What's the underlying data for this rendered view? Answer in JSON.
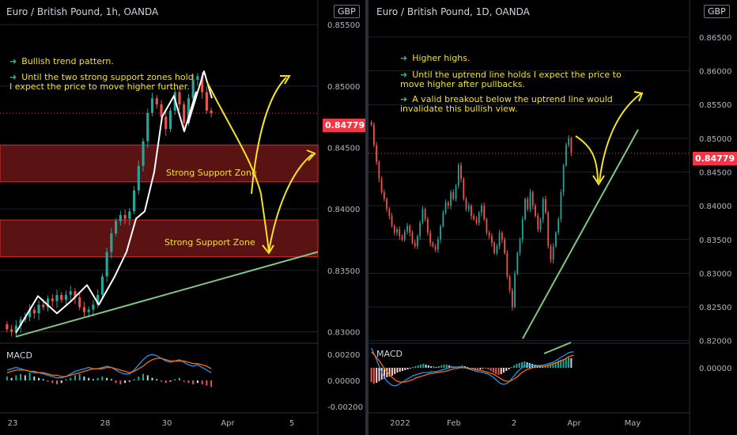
{
  "chart_data": [
    {
      "type": "candlestick",
      "title": "Euro / British Pound, 1h, OANDA",
      "currency": "GBP",
      "ylim": [
        0.829,
        0.857
      ],
      "y_ticks": [
        "0.85500",
        "0.85000",
        "0.84500",
        "0.84000",
        "0.83500",
        "0.83000"
      ],
      "y_tick_values": [
        0.855,
        0.85,
        0.845,
        0.84,
        0.835,
        0.83
      ],
      "x_ticks": [
        "23",
        "28",
        "30",
        "Apr",
        "5"
      ],
      "last_price": "0.84779",
      "last_price_value": 0.84779,
      "notes": [
        "Bullish trend pattern.",
        "Until the two strong support zones hold\nI expect the price to move higher further."
      ],
      "zones": [
        {
          "label": "Strong Support Zone",
          "from": 0.8422,
          "to": 0.8452
        },
        {
          "label": "Strong Support Zone",
          "from": 0.8361,
          "to": 0.8391
        }
      ],
      "trendline": {
        "from": 0.8296,
        "to": 0.8365
      },
      "path_points": [
        0.8299,
        0.8329,
        0.8315,
        0.8325,
        0.8338,
        0.8322,
        0.8345,
        0.8365,
        0.8392,
        0.8398,
        0.843,
        0.8475,
        0.8492,
        0.8463,
        0.8495,
        0.847,
        0.8512,
        0.849
      ],
      "close_series": [
        0.8302,
        0.83,
        0.8305,
        0.831,
        0.8312,
        0.8318,
        0.8315,
        0.8322,
        0.832,
        0.8327,
        0.8325,
        0.833,
        0.8326,
        0.833,
        0.8333,
        0.8328,
        0.832,
        0.8316,
        0.8318,
        0.8322,
        0.833,
        0.8345,
        0.8365,
        0.838,
        0.839,
        0.8395,
        0.8392,
        0.8398,
        0.8415,
        0.8435,
        0.8455,
        0.8478,
        0.849,
        0.8485,
        0.8475,
        0.8465,
        0.848,
        0.8495,
        0.8485,
        0.847,
        0.849,
        0.8505,
        0.8508,
        0.8495,
        0.848,
        0.8478
      ],
      "macd": {
        "label": "MACD",
        "y_ticks": [
          "0.00200",
          "0.00000",
          "-0.00200"
        ],
        "y_tick_values": [
          0.002,
          0.0,
          -0.002
        ],
        "histogram": [
          0.0003,
          0.0002,
          0.0004,
          0.0005,
          0.0004,
          0.0006,
          0.0003,
          0.0002,
          0.0001,
          -0.0001,
          -0.0002,
          -0.0003,
          -0.0002,
          0.0001,
          0.0002,
          0.0004,
          0.0005,
          0.0003,
          0.0002,
          0.0001,
          0.0002,
          0.0003,
          0.0002,
          0.0001,
          -0.0002,
          -0.0003,
          -0.0002,
          -0.0001,
          0.0001,
          0.0003,
          0.0005,
          0.0004,
          0.0002,
          0.0001,
          -0.0001,
          -0.0002,
          -0.0001,
          0.0001,
          0.0002,
          -0.0001,
          -0.0002,
          -0.0003,
          -0.0002,
          -0.0003,
          -0.0004,
          -0.0005
        ],
        "macd_line": [
          0.0008,
          0.0009,
          0.001,
          0.0009,
          0.0008,
          0.0007,
          0.0006,
          0.0006,
          0.0005,
          0.0004,
          0.0003,
          0.0002,
          0.0002,
          0.0003,
          0.0005,
          0.0007,
          0.0008,
          0.0009,
          0.001,
          0.0009,
          0.0009,
          0.001,
          0.0011,
          0.001,
          0.0008,
          0.0006,
          0.0005,
          0.0005,
          0.0008,
          0.0012,
          0.0016,
          0.0019,
          0.002,
          0.0019,
          0.0017,
          0.0015,
          0.0014,
          0.0015,
          0.0016,
          0.0014,
          0.0012,
          0.0011,
          0.0012,
          0.001,
          0.0008,
          0.0006
        ],
        "signal_line": [
          0.0006,
          0.0007,
          0.0008,
          0.0008,
          0.0008,
          0.0007,
          0.0007,
          0.0006,
          0.0006,
          0.0005,
          0.0004,
          0.0004,
          0.0003,
          0.0003,
          0.0004,
          0.0005,
          0.0006,
          0.0007,
          0.0008,
          0.0009,
          0.0009,
          0.0009,
          0.001,
          0.001,
          0.0009,
          0.0008,
          0.0007,
          0.0006,
          0.0007,
          0.0009,
          0.0011,
          0.0014,
          0.0016,
          0.0017,
          0.0017,
          0.0016,
          0.0015,
          0.0015,
          0.0015,
          0.0015,
          0.0014,
          0.0013,
          0.0013,
          0.0012,
          0.0011,
          0.0009
        ]
      }
    },
    {
      "type": "candlestick",
      "title": "Euro / British Pound, 1D, OANDA",
      "currency": "GBP",
      "ylim": [
        0.8195,
        0.8705
      ],
      "y_ticks": [
        "0.86500",
        "0.86000",
        "0.85500",
        "0.85000",
        "0.84500",
        "0.84000",
        "0.83500",
        "0.83000",
        "0.82500",
        "0.82000"
      ],
      "y_tick_values": [
        0.865,
        0.86,
        0.855,
        0.85,
        0.845,
        0.84,
        0.835,
        0.83,
        0.825,
        0.82
      ],
      "x_ticks": [
        "2022",
        "Feb",
        "2",
        "Apr",
        "May"
      ],
      "last_price": "0.84779",
      "last_price_value": 0.84779,
      "notes": [
        "Higher highs.",
        "Until the uptrend line holds I expect the price to\nmove higher after pullbacks.",
        "A valid breakout below the uptrend line would\ninvalidate this bullish view."
      ],
      "trendline": {
        "from": 0.8203,
        "to": 0.8513
      },
      "close_series": [
        0.852,
        0.849,
        0.8465,
        0.844,
        0.842,
        0.841,
        0.8395,
        0.8385,
        0.837,
        0.836,
        0.8365,
        0.8355,
        0.835,
        0.8362,
        0.837,
        0.836,
        0.8345,
        0.834,
        0.8355,
        0.8375,
        0.8395,
        0.838,
        0.836,
        0.8345,
        0.834,
        0.8335,
        0.835,
        0.837,
        0.839,
        0.8405,
        0.84,
        0.842,
        0.841,
        0.843,
        0.846,
        0.844,
        0.841,
        0.8395,
        0.84,
        0.8385,
        0.838,
        0.8375,
        0.839,
        0.84,
        0.838,
        0.836,
        0.8355,
        0.8345,
        0.833,
        0.834,
        0.836,
        0.835,
        0.833,
        0.8295,
        0.8275,
        0.825,
        0.83,
        0.833,
        0.835,
        0.838,
        0.841,
        0.8395,
        0.842,
        0.84,
        0.8385,
        0.8365,
        0.838,
        0.841,
        0.839,
        0.834,
        0.832,
        0.834,
        0.836,
        0.838,
        0.842,
        0.846,
        0.849,
        0.85,
        0.8478
      ],
      "macd": {
        "label": "MACD",
        "y_ticks": [
          "0.00000"
        ],
        "y_tick_values": [
          0.0
        ],
        "histogram": [
          -0.0018,
          -0.002,
          -0.0019,
          -0.0017,
          -0.0015,
          -0.0014,
          -0.0012,
          -0.0011,
          -0.001,
          -0.0008,
          -0.0006,
          -0.0005,
          -0.0004,
          -0.0003,
          -0.0002,
          -0.0001,
          0.0001,
          0.0002,
          0.0003,
          0.0004,
          0.0005,
          0.0004,
          0.0003,
          0.0002,
          0.0002,
          0.0001,
          0.0002,
          0.0003,
          0.0004,
          0.0004,
          0.0003,
          0.0002,
          0.0001,
          0.0001,
          0.0002,
          0.0003,
          0.0002,
          0.0001,
          -0.0001,
          -0.0002,
          -0.0003,
          -0.0003,
          -0.0002,
          -0.0001,
          -0.0001,
          -0.0002,
          -0.0004,
          -0.0006,
          -0.0008,
          -0.0009,
          -0.0008,
          -0.0006,
          -0.0004,
          -0.0002,
          0.0001,
          0.0003,
          0.0005,
          0.0006,
          0.0007,
          0.0008,
          0.0007,
          0.0006,
          0.0005,
          0.0004,
          0.0003,
          0.0002,
          0.0001,
          0.0002,
          0.0003,
          0.0004,
          0.0005,
          0.0007,
          0.0009,
          0.001,
          0.0011,
          0.0012,
          0.0013,
          0.0012
        ],
        "macd_line": [
          0.0025,
          0.0018,
          0.001,
          0.0002,
          -0.0006,
          -0.0012,
          -0.0017,
          -0.002,
          -0.0022,
          -0.0023,
          -0.0022,
          -0.002,
          -0.0018,
          -0.0016,
          -0.0014,
          -0.0012,
          -0.001,
          -0.0009,
          -0.0008,
          -0.0007,
          -0.0006,
          -0.0006,
          -0.0006,
          -0.0005,
          -0.0005,
          -0.0005,
          -0.0004,
          -0.0003,
          -0.0002,
          -0.0001,
          0.0,
          0.0001,
          0.0001,
          0.0001,
          0.0001,
          0.0001,
          0.0,
          -0.0001,
          -0.0002,
          -0.0003,
          -0.0004,
          -0.0005,
          -0.0005,
          -0.0006,
          -0.0007,
          -0.0008,
          -0.001,
          -0.0012,
          -0.0015,
          -0.0018,
          -0.002,
          -0.0021,
          -0.002,
          -0.0018,
          -0.0014,
          -0.001,
          -0.0006,
          -0.0003,
          0.0,
          0.0002,
          0.0003,
          0.0003,
          0.0003,
          0.0003,
          0.0003,
          0.0003,
          0.0003,
          0.0004,
          0.0005,
          0.0006,
          0.0007,
          0.0009,
          0.0011,
          0.0013,
          0.0015,
          0.0017,
          0.0019,
          0.002,
          0.002
        ],
        "signal_line": [
          0.002,
          0.0017,
          0.0013,
          0.0009,
          0.0004,
          -0.0001,
          -0.0005,
          -0.0009,
          -0.0012,
          -0.0015,
          -0.0017,
          -0.0018,
          -0.0018,
          -0.0018,
          -0.0017,
          -0.0016,
          -0.0015,
          -0.0013,
          -0.0012,
          -0.0011,
          -0.001,
          -0.0009,
          -0.0008,
          -0.0007,
          -0.0007,
          -0.0006,
          -0.0006,
          -0.0005,
          -0.0005,
          -0.0004,
          -0.0003,
          -0.0002,
          -0.0001,
          -0.0001,
          0.0,
          0.0,
          0.0,
          0.0,
          -0.0001,
          -0.0001,
          -0.0002,
          -0.0003,
          -0.0003,
          -0.0004,
          -0.0005,
          -0.0006,
          -0.0007,
          -0.0008,
          -0.001,
          -0.0012,
          -0.0014,
          -0.0016,
          -0.0017,
          -0.0017,
          -0.0016,
          -0.0014,
          -0.0012,
          -0.0009,
          -0.0006,
          -0.0004,
          -0.0002,
          -0.0001,
          0.0,
          0.0001,
          0.0001,
          0.0002,
          0.0002,
          0.0002,
          0.0003,
          0.0004,
          0.0005,
          0.0006,
          0.0007,
          0.0009,
          0.001,
          0.0012,
          0.0014,
          0.0015,
          0.0016
        ]
      }
    }
  ],
  "colors": {
    "up": "#26a69a",
    "down": "#ef5350",
    "zone_fill": "#6b1515",
    "zone_border": "#d32f2f",
    "trendline": "#81c784",
    "annotation": "#f3e227",
    "path": "#ffffff",
    "macd_line": "#2196f3",
    "signal_line": "#ff6d00",
    "price_tag": "#f23645",
    "grid": "#1e222d",
    "axis_text": "#b2b5be"
  }
}
